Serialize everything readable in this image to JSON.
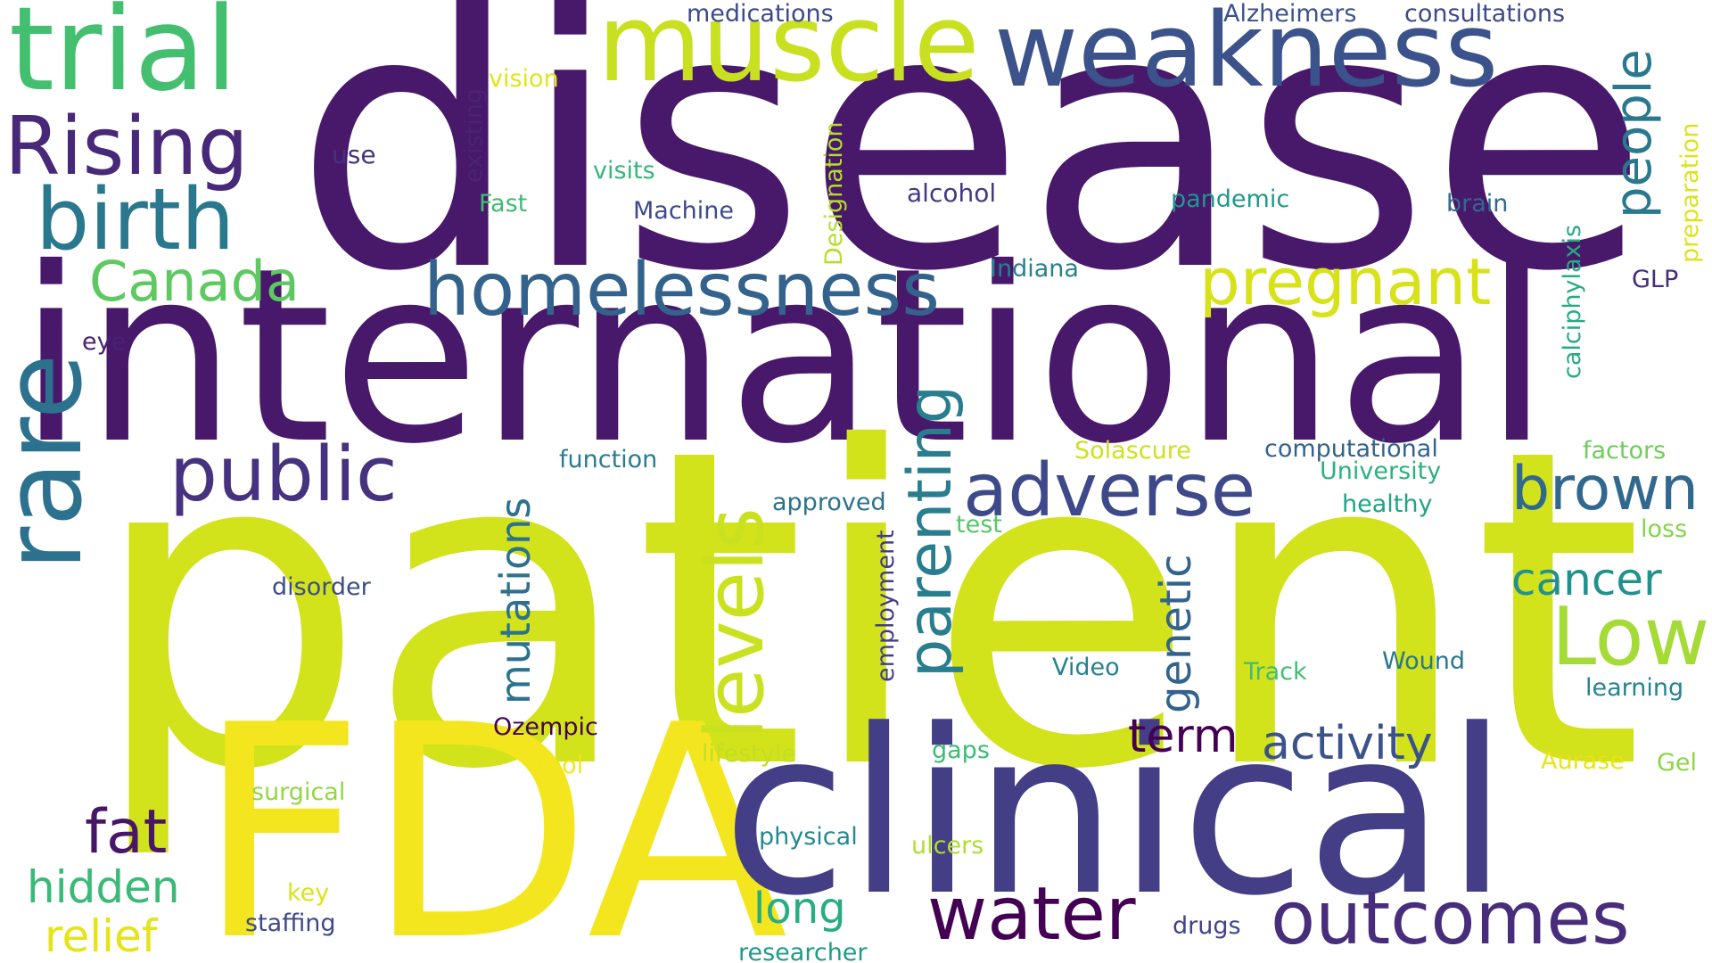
{
  "words": [
    {
      "text": "disease",
      "color": "#48186a"
    },
    {
      "text": "international",
      "color": "#48186a"
    },
    {
      "text": "patient",
      "color": "#d2e21b"
    },
    {
      "text": "FDA",
      "color": "#f4e61e"
    },
    {
      "text": "clinical",
      "color": "#433e85"
    },
    {
      "text": "trial",
      "color": "#44bf70"
    },
    {
      "text": "muscle",
      "color": "#c8e020"
    },
    {
      "text": "weakness",
      "color": "#3b528b"
    },
    {
      "text": "Rising",
      "color": "#482878"
    },
    {
      "text": "birth",
      "color": "#2a788e"
    },
    {
      "text": "Canada",
      "color": "#5ec962"
    },
    {
      "text": "homelessness",
      "color": "#33638d"
    },
    {
      "text": "pregnant",
      "color": "#d8e219"
    },
    {
      "text": "rare",
      "color": "#2c728e"
    },
    {
      "text": "public",
      "color": "#46327e"
    },
    {
      "text": "levels",
      "color": "#cae11f"
    },
    {
      "text": "parenting",
      "color": "#287d8e"
    },
    {
      "text": "adverse",
      "color": "#3e4989"
    },
    {
      "text": "brown",
      "color": "#31688e"
    },
    {
      "text": "people",
      "color": "#2a788e"
    },
    {
      "text": "Low",
      "color": "#a5db36"
    },
    {
      "text": "cancer",
      "color": "#21918c"
    },
    {
      "text": "mutations",
      "color": "#2c728e"
    },
    {
      "text": "genetic",
      "color": "#33638d"
    },
    {
      "text": "term",
      "color": "#440154"
    },
    {
      "text": "activity",
      "color": "#3b528b"
    },
    {
      "text": "fat",
      "color": "#481668"
    },
    {
      "text": "hidden",
      "color": "#3aba76"
    },
    {
      "text": "relief",
      "color": "#e5e419"
    },
    {
      "text": "water",
      "color": "#440154"
    },
    {
      "text": "outcomes",
      "color": "#472d7b"
    },
    {
      "text": "long",
      "color": "#27ad81"
    },
    {
      "text": "medications",
      "color": "#3e4989"
    },
    {
      "text": "Alzheimers",
      "color": "#3b528b"
    },
    {
      "text": "consultations",
      "color": "#3e4989"
    },
    {
      "text": "vision",
      "color": "#e2e418"
    },
    {
      "text": "existing",
      "color": "#482475"
    },
    {
      "text": "use",
      "color": "#46337f"
    },
    {
      "text": "visits",
      "color": "#35b779"
    },
    {
      "text": "Fast",
      "color": "#3fbc73"
    },
    {
      "text": "Machine",
      "color": "#3e4a89"
    },
    {
      "text": "Designation",
      "color": "#b5de2b"
    },
    {
      "text": "alcohol",
      "color": "#453882"
    },
    {
      "text": "pandemic",
      "color": "#1f988b"
    },
    {
      "text": "brain",
      "color": "#31688e"
    },
    {
      "text": "preparation",
      "color": "#dde318"
    },
    {
      "text": "calciphylaxis",
      "color": "#25ab82"
    },
    {
      "text": "Indiana",
      "color": "#26828e"
    },
    {
      "text": "GLP",
      "color": "#472c7a"
    },
    {
      "text": "eye",
      "color": "#482173"
    },
    {
      "text": "function",
      "color": "#287c8e"
    },
    {
      "text": "Solascure",
      "color": "#cde11d"
    },
    {
      "text": "computational",
      "color": "#33638d"
    },
    {
      "text": "factors",
      "color": "#6ece58"
    },
    {
      "text": "University",
      "color": "#2db27d"
    },
    {
      "text": "healthy",
      "color": "#20a386"
    },
    {
      "text": "approved",
      "color": "#2d718e"
    },
    {
      "text": "test",
      "color": "#56c667"
    },
    {
      "text": "loss",
      "color": "#84d44b"
    },
    {
      "text": "disorder",
      "color": "#3d4d8a"
    },
    {
      "text": "employment",
      "color": "#433e85"
    },
    {
      "text": "Video",
      "color": "#26818e"
    },
    {
      "text": "Track",
      "color": "#40bd72"
    },
    {
      "text": "Wound",
      "color": "#2a778e"
    },
    {
      "text": "learning",
      "color": "#25848e"
    },
    {
      "text": "Ozempic",
      "color": "#440154"
    },
    {
      "text": "tool",
      "color": "#f1e51d"
    },
    {
      "text": "lifestyle",
      "color": "#c2df23"
    },
    {
      "text": "gaps",
      "color": "#3dbc74"
    },
    {
      "text": "Aurase",
      "color": "#e7e419"
    },
    {
      "text": "Gel",
      "color": "#8bd646"
    },
    {
      "text": "surgical",
      "color": "#93d741"
    },
    {
      "text": "physical",
      "color": "#23898e"
    },
    {
      "text": "ulcers",
      "color": "#b0dd2f"
    },
    {
      "text": "key",
      "color": "#dae319"
    },
    {
      "text": "staffing",
      "color": "#3e4989"
    },
    {
      "text": "drugs",
      "color": "#414487"
    },
    {
      "text": "researcher",
      "color": "#1e9b8a"
    }
  ]
}
